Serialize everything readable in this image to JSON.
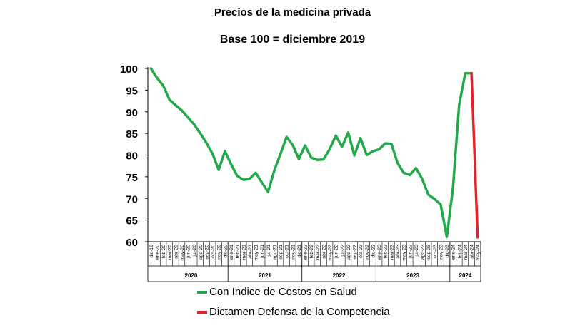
{
  "chart_data": {
    "type": "line",
    "title": "Precios de la medicina privada",
    "subtitle": "Base 100 = diciembre 2019",
    "xlabel": "",
    "ylabel": "",
    "ylim": [
      60,
      100
    ],
    "yticks": [
      60,
      65,
      70,
      75,
      80,
      85,
      90,
      95,
      100
    ],
    "grid": false,
    "legend_position": "bottom",
    "categories": [
      "dic-19",
      "ene-20",
      "feb-20",
      "mar-20",
      "abr-20",
      "may-20",
      "jun-20",
      "jul-20",
      "ago-20",
      "sep-20",
      "oct-20",
      "nov-20",
      "dic-20",
      "ene-21",
      "feb-21",
      "mar-21",
      "abr-21",
      "may-21",
      "jun-21",
      "jul-21",
      "ago-21",
      "sep-21",
      "oct-21",
      "nov-21",
      "dic-21",
      "ene-22",
      "feb-22",
      "mar-22",
      "abr-22",
      "may-22",
      "jun-22",
      "jul-22",
      "ago-22",
      "sep-22",
      "oct-22",
      "nov-22",
      "dic-22",
      "ene-23",
      "feb-23",
      "mar-23",
      "abr-23",
      "may-23",
      "jun-23",
      "jul-23",
      "ago-23",
      "sep-23",
      "oct-23",
      "nov-23",
      "dic-23",
      "ene-24",
      "feb-24",
      "mar-24",
      "abr-24",
      "may-24"
    ],
    "year_groups": [
      {
        "label": "2020",
        "from": 1,
        "to": 12
      },
      {
        "label": "2021",
        "from": 13,
        "to": 24
      },
      {
        "label": "2022",
        "from": 25,
        "to": 36
      },
      {
        "label": "2023",
        "from": 37,
        "to": 48
      },
      {
        "label": "2024",
        "from": 49,
        "to": 53
      }
    ],
    "series": [
      {
        "name": "Con Indice de Costos en Salud",
        "color": "#21a94a",
        "values": [
          100,
          97.8,
          96,
          92.8,
          91.5,
          90.3,
          88.7,
          87.1,
          85,
          82.8,
          80.3,
          76.6,
          80.9,
          77.9,
          75.2,
          74.3,
          74.5,
          75.9,
          73.7,
          71.5,
          76.4,
          80.2,
          84.2,
          82.3,
          79.1,
          82.2,
          79.4,
          78.9,
          79,
          81.4,
          84.5,
          81.9,
          85.2,
          79.9,
          83.9,
          80,
          80.9,
          81.3,
          82.7,
          82.6,
          78.2,
          75.9,
          75.4,
          77,
          74.5,
          70.9,
          69.9,
          68.6,
          61.1,
          72.5,
          91.6,
          98.9,
          98.9,
          null
        ]
      },
      {
        "name": "Dictamen Defensa de la Competencia",
        "color": "#e3222b",
        "values": [
          null,
          null,
          null,
          null,
          null,
          null,
          null,
          null,
          null,
          null,
          null,
          null,
          null,
          null,
          null,
          null,
          null,
          null,
          null,
          null,
          null,
          null,
          null,
          null,
          null,
          null,
          null,
          null,
          null,
          null,
          null,
          null,
          null,
          null,
          null,
          null,
          null,
          null,
          null,
          null,
          null,
          null,
          null,
          null,
          null,
          null,
          null,
          null,
          null,
          null,
          null,
          null,
          98.9,
          61
        ]
      }
    ]
  }
}
